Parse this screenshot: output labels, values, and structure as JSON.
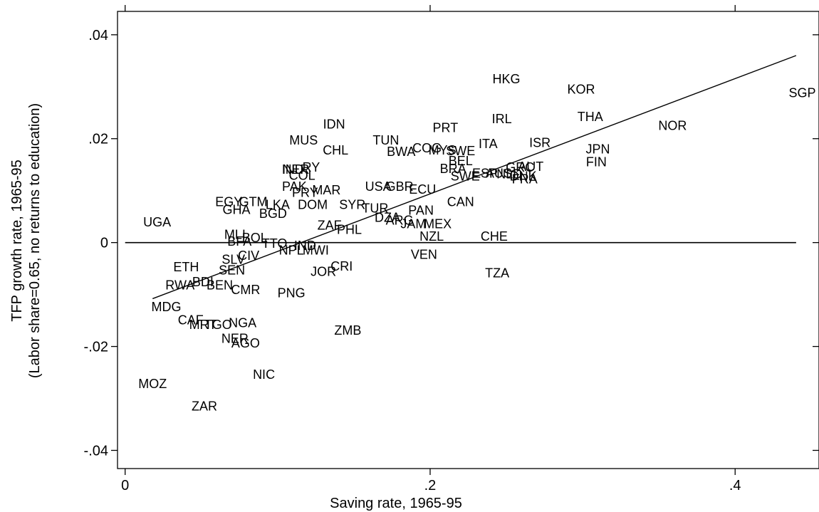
{
  "chart_data": {
    "type": "scatter",
    "xlabel": "Saving rate, 1965-95",
    "ylabel_line1": "TFP growth rate, 1965-95",
    "ylabel_line2": "(Labor share=0.65, no returns to education)",
    "xlim": [
      -0.005,
      0.455
    ],
    "ylim": [
      -0.0435,
      0.0445
    ],
    "x_ticks": [
      0,
      0.2,
      0.4
    ],
    "x_tick_labels": [
      "0",
      ".2",
      ".4"
    ],
    "y_ticks": [
      0.04,
      0.02,
      0,
      -0.02,
      -0.04
    ],
    "y_tick_labels": [
      ".04",
      ".02",
      "0",
      "-.02",
      "-.04"
    ],
    "reference_line_y": 0,
    "fit_line": {
      "x": [
        0.018,
        0.44
      ],
      "y": [
        -0.0108,
        0.036
      ]
    },
    "points": [
      {
        "label": "SGP",
        "x": 0.444,
        "y": 0.0288
      },
      {
        "label": "HKG",
        "x": 0.25,
        "y": 0.0315
      },
      {
        "label": "KOR",
        "x": 0.299,
        "y": 0.0295
      },
      {
        "label": "IRL",
        "x": 0.247,
        "y": 0.0238
      },
      {
        "label": "THA",
        "x": 0.305,
        "y": 0.0242
      },
      {
        "label": "NOR",
        "x": 0.359,
        "y": 0.0225
      },
      {
        "label": "JPN",
        "x": 0.31,
        "y": 0.018
      },
      {
        "label": "FIN",
        "x": 0.309,
        "y": 0.0155
      },
      {
        "label": "ISR",
        "x": 0.272,
        "y": 0.0192
      },
      {
        "label": "IDN",
        "x": 0.137,
        "y": 0.0228
      },
      {
        "label": "PRT",
        "x": 0.21,
        "y": 0.0221
      },
      {
        "label": "MUS",
        "x": 0.117,
        "y": 0.0197
      },
      {
        "label": "CHL",
        "x": 0.138,
        "y": 0.0178
      },
      {
        "label": "TUN",
        "x": 0.171,
        "y": 0.0197
      },
      {
        "label": "BWA",
        "x": 0.181,
        "y": 0.0175
      },
      {
        "label": "COG",
        "x": 0.198,
        "y": 0.0182
      },
      {
        "label": "MYS",
        "x": 0.208,
        "y": 0.0178
      },
      {
        "label": "SWE",
        "x": 0.22,
        "y": 0.0176
      },
      {
        "label": "ITA",
        "x": 0.238,
        "y": 0.019
      },
      {
        "label": "BEL",
        "x": 0.22,
        "y": 0.0157
      },
      {
        "label": "BRA",
        "x": 0.215,
        "y": 0.0142
      },
      {
        "label": "IND",
        "x": 0.11,
        "y": 0.0141
      },
      {
        "label": "NER",
        "x": 0.112,
        "y": 0.0141
      },
      {
        "label": "RY",
        "x": 0.122,
        "y": 0.0145
      },
      {
        "label": "COL",
        "x": 0.116,
        "y": 0.0129
      },
      {
        "label": "PAK",
        "x": 0.111,
        "y": 0.0108
      },
      {
        "label": "PRY",
        "x": 0.118,
        "y": 0.0096
      },
      {
        "label": "MAR",
        "x": 0.132,
        "y": 0.0101
      },
      {
        "label": "USA",
        "x": 0.166,
        "y": 0.0108
      },
      {
        "label": "GBR",
        "x": 0.18,
        "y": 0.0108
      },
      {
        "label": "ECU",
        "x": 0.195,
        "y": 0.0102
      },
      {
        "label": "SWE",
        "x": 0.223,
        "y": 0.0128
      },
      {
        "label": "ESP",
        "x": 0.236,
        "y": 0.0133
      },
      {
        "label": "AUS",
        "x": 0.245,
        "y": 0.0133
      },
      {
        "label": "NLD",
        "x": 0.252,
        "y": 0.0132
      },
      {
        "label": "GRC",
        "x": 0.259,
        "y": 0.0145
      },
      {
        "label": "AUT",
        "x": 0.266,
        "y": 0.0146
      },
      {
        "label": "DNK",
        "x": 0.261,
        "y": 0.0128
      },
      {
        "label": "FRA",
        "x": 0.262,
        "y": 0.0122
      },
      {
        "label": "CAN",
        "x": 0.22,
        "y": 0.0078
      },
      {
        "label": "EGY",
        "x": 0.068,
        "y": 0.0078
      },
      {
        "label": "GTM",
        "x": 0.084,
        "y": 0.0078
      },
      {
        "label": "GHA",
        "x": 0.073,
        "y": 0.0063
      },
      {
        "label": "LKA",
        "x": 0.1,
        "y": 0.0073
      },
      {
        "label": "DOM",
        "x": 0.123,
        "y": 0.0073
      },
      {
        "label": "SYR",
        "x": 0.149,
        "y": 0.0073
      },
      {
        "label": "BGD",
        "x": 0.097,
        "y": 0.0056
      },
      {
        "label": "TUR",
        "x": 0.164,
        "y": 0.0066
      },
      {
        "label": "PAN",
        "x": 0.194,
        "y": 0.0062
      },
      {
        "label": "DZA",
        "x": 0.172,
        "y": 0.0048
      },
      {
        "label": "ARG",
        "x": 0.18,
        "y": 0.0043
      },
      {
        "label": "JAM",
        "x": 0.189,
        "y": 0.0036
      },
      {
        "label": "MEX",
        "x": 0.205,
        "y": 0.0036
      },
      {
        "label": "ZAF",
        "x": 0.134,
        "y": 0.0033
      },
      {
        "label": "PHL",
        "x": 0.147,
        "y": 0.0025
      },
      {
        "label": "UGA",
        "x": 0.021,
        "y": 0.0039
      },
      {
        "label": "TTO",
        "x": 0.098,
        "y": -0.0002
      },
      {
        "label": "MLI",
        "x": 0.072,
        "y": 0.0015
      },
      {
        "label": "BFA",
        "x": 0.075,
        "y": 0.0002
      },
      {
        "label": "BOL",
        "x": 0.085,
        "y": 0.0009
      },
      {
        "label": "NZL",
        "x": 0.201,
        "y": 0.0012
      },
      {
        "label": "CHE",
        "x": 0.242,
        "y": 0.0012
      },
      {
        "label": "IND",
        "x": 0.118,
        "y": -0.0006
      },
      {
        "label": "NPL",
        "x": 0.109,
        "y": -0.0015
      },
      {
        "label": "MWI",
        "x": 0.125,
        "y": -0.0015
      },
      {
        "label": "VEN",
        "x": 0.196,
        "y": -0.0023
      },
      {
        "label": "CIV",
        "x": 0.081,
        "y": -0.0025
      },
      {
        "label": "SLV",
        "x": 0.071,
        "y": -0.0033
      },
      {
        "label": "ETH",
        "x": 0.04,
        "y": -0.0047
      },
      {
        "label": "SEN",
        "x": 0.07,
        "y": -0.0053
      },
      {
        "label": "JOR",
        "x": 0.13,
        "y": -0.0056
      },
      {
        "label": "CRI",
        "x": 0.142,
        "y": -0.0046
      },
      {
        "label": "TZA",
        "x": 0.244,
        "y": -0.0059
      },
      {
        "label": "RWA",
        "x": 0.036,
        "y": -0.0082
      },
      {
        "label": "BDI",
        "x": 0.051,
        "y": -0.0076
      },
      {
        "label": "BEN",
        "x": 0.062,
        "y": -0.0082
      },
      {
        "label": "CMR",
        "x": 0.079,
        "y": -0.0091
      },
      {
        "label": "PNG",
        "x": 0.109,
        "y": -0.0097
      },
      {
        "label": "MDG",
        "x": 0.027,
        "y": -0.0124
      },
      {
        "label": "CAF",
        "x": 0.043,
        "y": -0.0149
      },
      {
        "label": "MRT",
        "x": 0.051,
        "y": -0.0158
      },
      {
        "label": "TGO",
        "x": 0.061,
        "y": -0.0158
      },
      {
        "label": "NGA",
        "x": 0.077,
        "y": -0.0155
      },
      {
        "label": "ZMB",
        "x": 0.146,
        "y": -0.0169
      },
      {
        "label": "NER",
        "x": 0.072,
        "y": -0.0185
      },
      {
        "label": "AGO",
        "x": 0.079,
        "y": -0.0194
      },
      {
        "label": "NIC",
        "x": 0.091,
        "y": -0.0254
      },
      {
        "label": "MOZ",
        "x": 0.018,
        "y": -0.0272
      },
      {
        "label": "ZAR",
        "x": 0.052,
        "y": -0.0315
      }
    ]
  }
}
